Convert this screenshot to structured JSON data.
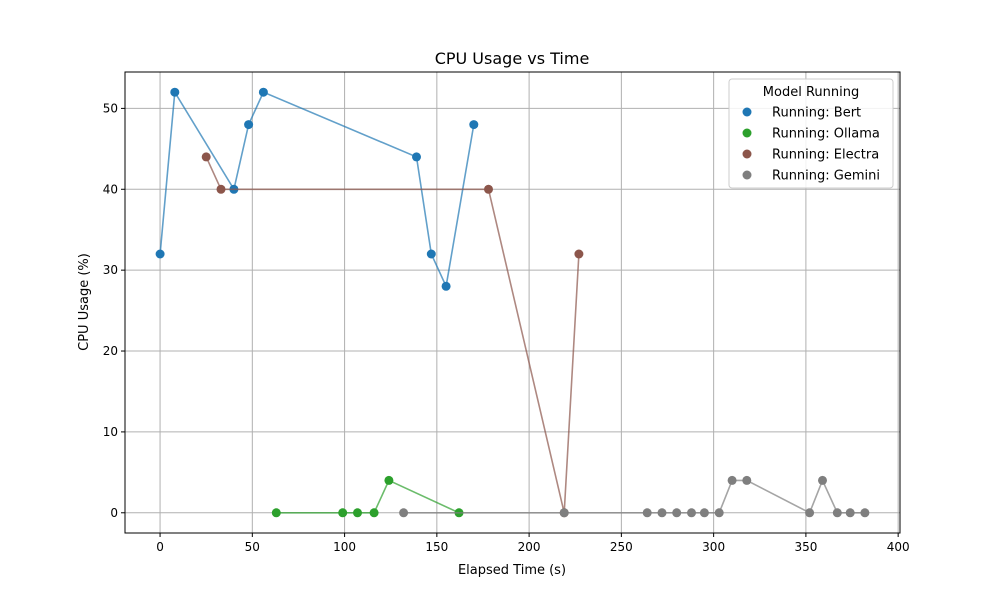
{
  "chart_data": {
    "type": "line",
    "title": "CPU Usage vs Time",
    "xlabel": "Elapsed Time (s)",
    "ylabel": "CPU Usage (%)",
    "xlim": [
      -19,
      401
    ],
    "ylim": [
      -2.5,
      54.5
    ],
    "xticks": [
      0,
      50,
      100,
      150,
      200,
      250,
      300,
      350,
      400
    ],
    "yticks": [
      0,
      10,
      20,
      30,
      40,
      50
    ],
    "grid": true,
    "legend": {
      "title": "Model Running",
      "position": "top-right"
    },
    "series": [
      {
        "name": "Running: Bert",
        "color": "#1f77b4",
        "points": [
          [
            0,
            32
          ],
          [
            8,
            52
          ],
          [
            40,
            40
          ],
          [
            48,
            48
          ],
          [
            56,
            52
          ],
          [
            139,
            44
          ],
          [
            147,
            32
          ],
          [
            155,
            28
          ],
          [
            170,
            48
          ]
        ]
      },
      {
        "name": "Running: Ollama",
        "color": "#2ca02c",
        "points": [
          [
            63,
            0
          ],
          [
            99,
            0
          ],
          [
            107,
            0
          ],
          [
            116,
            0
          ],
          [
            124,
            4
          ],
          [
            162,
            0
          ]
        ]
      },
      {
        "name": "Running: Electra",
        "color": "#8c564b",
        "points": [
          [
            25,
            44
          ],
          [
            33,
            40
          ],
          [
            178,
            40
          ],
          [
            219,
            0
          ],
          [
            227,
            32
          ]
        ]
      },
      {
        "name": "Running: Gemini",
        "color": "#7f7f7f",
        "points": [
          [
            132,
            0
          ],
          [
            219,
            0
          ],
          [
            264,
            0
          ],
          [
            272,
            0
          ],
          [
            280,
            0
          ],
          [
            288,
            0
          ],
          [
            295,
            0
          ],
          [
            303,
            0
          ],
          [
            310,
            4
          ],
          [
            318,
            4
          ],
          [
            352,
            0
          ],
          [
            359,
            4
          ],
          [
            367,
            0
          ],
          [
            374,
            0
          ],
          [
            382,
            0
          ]
        ]
      }
    ]
  }
}
